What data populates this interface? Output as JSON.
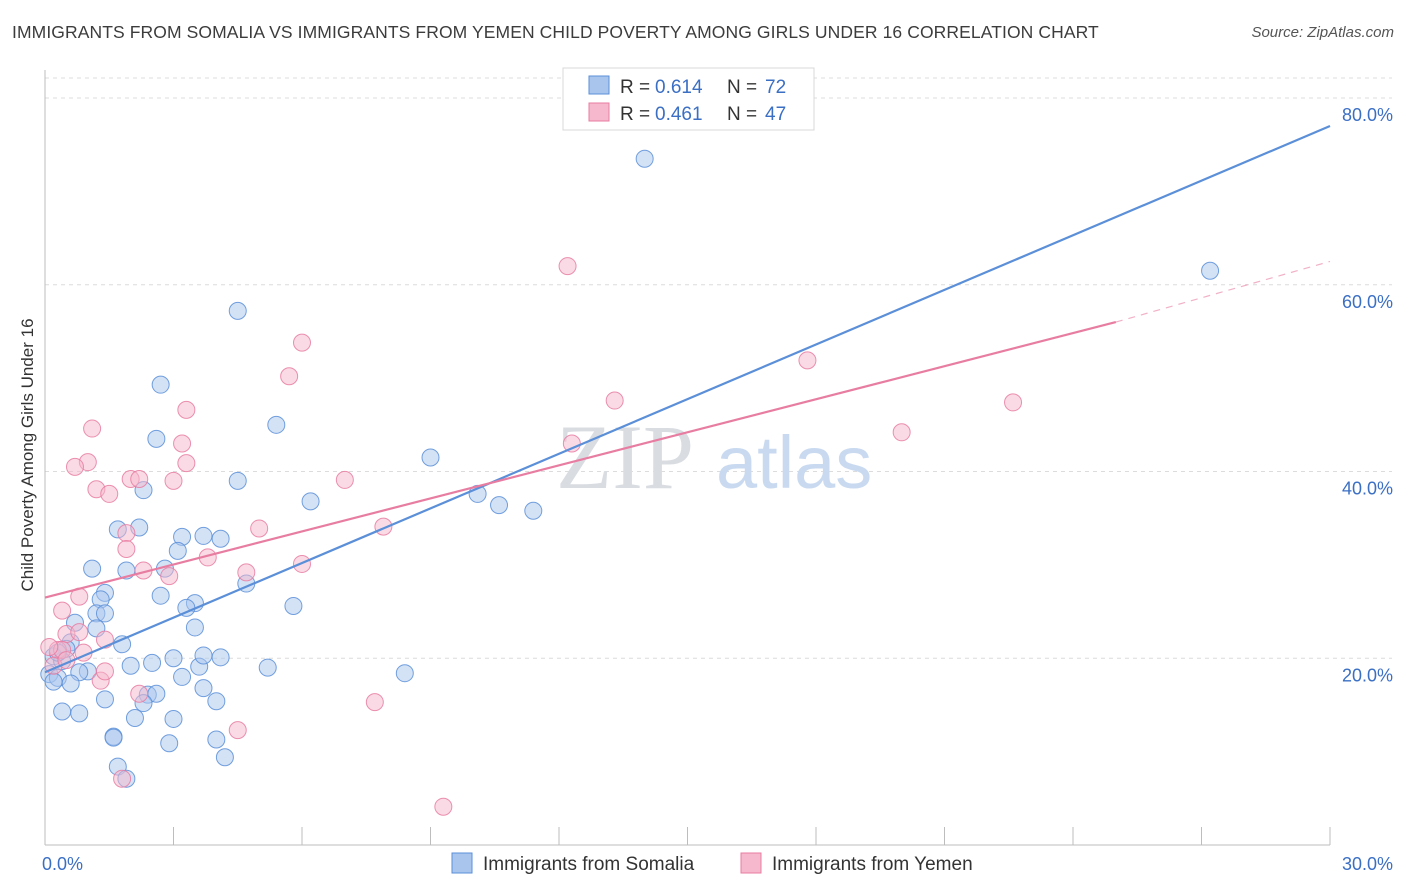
{
  "title": "IMMIGRANTS FROM SOMALIA VS IMMIGRANTS FROM YEMEN CHILD POVERTY AMONG GIRLS UNDER 16 CORRELATION CHART",
  "source": "Source: ZipAtlas.com",
  "watermark": {
    "zip": "ZIP",
    "atlas": "atlas"
  },
  "legend_top": [
    {
      "r_label": "R = ",
      "r_value": "0.614",
      "n_label": "N = ",
      "n_value": "72"
    },
    {
      "r_label": "R = ",
      "r_value": "0.461",
      "n_label": "N = ",
      "n_value": "47"
    }
  ],
  "chart_data": {
    "type": "scatter",
    "title": "IMMIGRANTS FROM SOMALIA VS IMMIGRANTS FROM YEMEN CHILD POVERTY AMONG GIRLS UNDER 16 CORRELATION CHART",
    "xlabel": "",
    "ylabel": "Child Poverty Among Girls Under 16",
    "xlim": [
      0,
      30
    ],
    "ylim": [
      0,
      83
    ],
    "x_tick_labels": [
      {
        "value": 0,
        "label": "0.0%"
      },
      {
        "value": 30,
        "label": "30.0%"
      }
    ],
    "y_tick_labels": [
      {
        "value": 20,
        "label": "20.0%"
      },
      {
        "value": 40,
        "label": "40.0%"
      },
      {
        "value": 60,
        "label": "60.0%"
      },
      {
        "value": 80,
        "label": "80.0%"
      }
    ],
    "grid": "horizontal dashed",
    "legend_position": "bottom-center",
    "series": [
      {
        "name": "Immigrants from Somalia",
        "color": "#5b8fd8",
        "fill": "#a9c5ee",
        "R": 0.614,
        "N": 72,
        "trend": {
          "x0": 0,
          "y0": 18.5,
          "x1": 30,
          "y1": 77
        },
        "points": [
          [
            14.0,
            73.5
          ],
          [
            27.2,
            61.5
          ],
          [
            4.5,
            57.2
          ],
          [
            2.7,
            49.3
          ],
          [
            5.4,
            45
          ],
          [
            2.6,
            43.5
          ],
          [
            9.0,
            41.5
          ],
          [
            4.5,
            39
          ],
          [
            2.3,
            38
          ],
          [
            6.2,
            36.8
          ],
          [
            10.1,
            37.6
          ],
          [
            10.6,
            36.4
          ],
          [
            11.4,
            35.8
          ],
          [
            2.2,
            34
          ],
          [
            1.7,
            33.8
          ],
          [
            3.2,
            33
          ],
          [
            3.7,
            33.1
          ],
          [
            4.1,
            32.8
          ],
          [
            3.1,
            31.5
          ],
          [
            1.1,
            29.6
          ],
          [
            1.9,
            29.4
          ],
          [
            2.8,
            29.6
          ],
          [
            4.7,
            28
          ],
          [
            1.4,
            27
          ],
          [
            2.7,
            26.7
          ],
          [
            3.5,
            25.9
          ],
          [
            1.3,
            26.3
          ],
          [
            1.2,
            24.8
          ],
          [
            1.4,
            24.8
          ],
          [
            3.3,
            25.4
          ],
          [
            5.8,
            25.6
          ],
          [
            0.7,
            23.8
          ],
          [
            3.5,
            23.3
          ],
          [
            1.2,
            23.2
          ],
          [
            0.6,
            21.7
          ],
          [
            1.8,
            21.5
          ],
          [
            0.5,
            21
          ],
          [
            0.2,
            20.2
          ],
          [
            0.4,
            19.7
          ],
          [
            1.0,
            18.6
          ],
          [
            0.8,
            18.5
          ],
          [
            0.1,
            18.3
          ],
          [
            0.3,
            17.9
          ],
          [
            0.2,
            17.5
          ],
          [
            0.6,
            17.3
          ],
          [
            2.0,
            19.2
          ],
          [
            2.5,
            19.5
          ],
          [
            3.0,
            20
          ],
          [
            3.6,
            19.1
          ],
          [
            3.7,
            20.3
          ],
          [
            4.1,
            20.1
          ],
          [
            5.2,
            19
          ],
          [
            8.4,
            18.4
          ],
          [
            3.2,
            18
          ],
          [
            3.7,
            16.8
          ],
          [
            2.4,
            16.1
          ],
          [
            2.6,
            16.2
          ],
          [
            1.4,
            15.6
          ],
          [
            4.0,
            15.4
          ],
          [
            2.3,
            15.2
          ],
          [
            0.4,
            14.3
          ],
          [
            0.8,
            14.1
          ],
          [
            2.1,
            13.6
          ],
          [
            3.0,
            13.5
          ],
          [
            1.6,
            11.6
          ],
          [
            1.6,
            11.5
          ],
          [
            4.0,
            11.3
          ],
          [
            2.9,
            10.9
          ],
          [
            4.2,
            9.4
          ],
          [
            1.7,
            8.4
          ],
          [
            1.9,
            7.1
          ],
          [
            0.3,
            20.6
          ]
        ]
      },
      {
        "name": "Immigrants from Yemen",
        "color": "#e87da2",
        "fill": "#f6b8cc",
        "R": 0.461,
        "N": 47,
        "trend": {
          "x0": 0,
          "y0": 26.5,
          "x1": 25,
          "y1": 56,
          "dash_to_x": 30,
          "dash_to_y": 62.5
        },
        "points": [
          [
            12.2,
            62
          ],
          [
            6.0,
            53.8
          ],
          [
            5.7,
            50.2
          ],
          [
            17.8,
            51.9
          ],
          [
            13.3,
            47.6
          ],
          [
            22.6,
            47.4
          ],
          [
            3.3,
            46.6
          ],
          [
            20.0,
            44.2
          ],
          [
            1.1,
            44.6
          ],
          [
            3.2,
            43
          ],
          [
            12.3,
            43
          ],
          [
            1.0,
            41
          ],
          [
            0.7,
            40.5
          ],
          [
            3.3,
            40.9
          ],
          [
            2.0,
            39.2
          ],
          [
            2.2,
            39.2
          ],
          [
            7.0,
            39.1
          ],
          [
            1.2,
            38.1
          ],
          [
            3.0,
            39
          ],
          [
            1.5,
            37.6
          ],
          [
            7.9,
            34.1
          ],
          [
            5.0,
            33.9
          ],
          [
            1.9,
            33.4
          ],
          [
            1.9,
            31.7
          ],
          [
            3.8,
            30.8
          ],
          [
            6.0,
            30.1
          ],
          [
            2.3,
            29.4
          ],
          [
            4.7,
            29.2
          ],
          [
            2.9,
            28.8
          ],
          [
            0.8,
            26.6
          ],
          [
            0.4,
            25.1
          ],
          [
            0.5,
            22.6
          ],
          [
            0.8,
            22.8
          ],
          [
            1.4,
            22
          ],
          [
            0.3,
            20.9
          ],
          [
            0.4,
            20.9
          ],
          [
            0.9,
            20.6
          ],
          [
            0.1,
            21.2
          ],
          [
            0.2,
            19.2
          ],
          [
            0.5,
            19.8
          ],
          [
            1.3,
            17.6
          ],
          [
            1.4,
            18.6
          ],
          [
            2.2,
            16.2
          ],
          [
            7.7,
            15.3
          ],
          [
            4.5,
            12.3
          ],
          [
            1.8,
            7.1
          ],
          [
            9.3,
            4.1
          ]
        ]
      }
    ]
  }
}
